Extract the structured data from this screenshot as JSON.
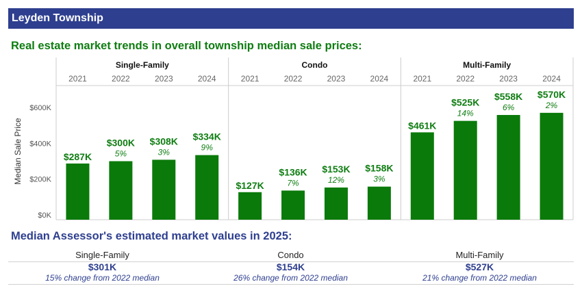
{
  "header": {
    "title": "Leyden Township"
  },
  "trends_heading": "Real estate market trends in overall township median sale prices:",
  "values_heading": "Median Assessor's estimated market values in 2025:",
  "assessor_values": [
    {
      "type": "Single-Family",
      "value": "$301K",
      "change": "15% change from 2022 median"
    },
    {
      "type": "Condo",
      "value": "$154K",
      "change": "26% change from 2022 median"
    },
    {
      "type": "Multi-Family",
      "value": "$527K",
      "change": "21% change from 2022 median"
    }
  ],
  "colors": {
    "header_bg": "#2e3f8f",
    "bar": "#0a7a0a",
    "label_green": "#0f7d12",
    "heading_blue": "#2e3f8f"
  },
  "chart_data": {
    "type": "bar",
    "ylabel": "Median Sale Price",
    "ylim": [
      0,
      700000
    ],
    "yticks": [
      {
        "value": 0,
        "label": "$0K"
      },
      {
        "value": 200000,
        "label": "$200K"
      },
      {
        "value": 400000,
        "label": "$400K"
      },
      {
        "value": 600000,
        "label": "$600K"
      }
    ],
    "grid": false,
    "panels": [
      {
        "title": "Single-Family",
        "years": [
          "2021",
          "2022",
          "2023",
          "2024"
        ],
        "values": [
          287000,
          300000,
          308000,
          334000
        ],
        "labels": [
          "$287K",
          "$300K",
          "$308K",
          "$334K"
        ],
        "changes": [
          "",
          "5%",
          "3%",
          "9%"
        ]
      },
      {
        "title": "Condo",
        "years": [
          "2021",
          "2022",
          "2023",
          "2024"
        ],
        "values": [
          127000,
          136000,
          153000,
          158000
        ],
        "labels": [
          "$127K",
          "$136K",
          "$153K",
          "$158K"
        ],
        "changes": [
          "",
          "7%",
          "12%",
          "3%"
        ]
      },
      {
        "title": "Multi-Family",
        "years": [
          "2021",
          "2022",
          "2023",
          "2024"
        ],
        "values": [
          461000,
          525000,
          558000,
          570000
        ],
        "labels": [
          "$461K",
          "$525K",
          "$558K",
          "$570K"
        ],
        "changes": [
          "",
          "14%",
          "6%",
          "2%"
        ]
      }
    ]
  }
}
